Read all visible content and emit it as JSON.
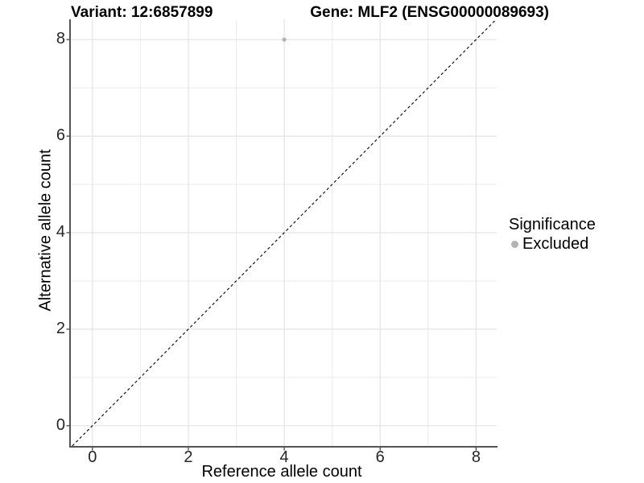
{
  "figure": {
    "title_left": "Variant: 12:6857899",
    "title_right": "Gene: MLF2 (ENSG00000089693)"
  },
  "chart_data": {
    "type": "scatter",
    "xlabel": "Reference allele count",
    "ylabel": "Alternative allele count",
    "xlim": [
      -0.45,
      8.43
    ],
    "ylim": [
      -0.42,
      8.42
    ],
    "x_ticks": [
      0,
      2,
      4,
      6,
      8
    ],
    "y_ticks": [
      0,
      2,
      4,
      6,
      8
    ],
    "minor_breaks": [
      1,
      3,
      5,
      7
    ],
    "grid": "major+minor",
    "identity_line": {
      "equation": "y = x",
      "style": "dashed",
      "color": "#000000"
    },
    "series": [
      {
        "name": "Excluded",
        "color": "#b3b3b3",
        "points": [
          {
            "x": 4,
            "y": 8
          }
        ]
      }
    ],
    "legend": {
      "title": "Significance",
      "position": "right",
      "items": [
        {
          "label": "Excluded",
          "color": "#b3b3b3",
          "marker": "circle"
        }
      ]
    },
    "style": {
      "grid_major_color": "#e3e3e3",
      "grid_minor_color": "#ebebeb",
      "axis_line_color": "#545454",
      "tick_color": "#333333",
      "background": "#ffffff"
    }
  }
}
